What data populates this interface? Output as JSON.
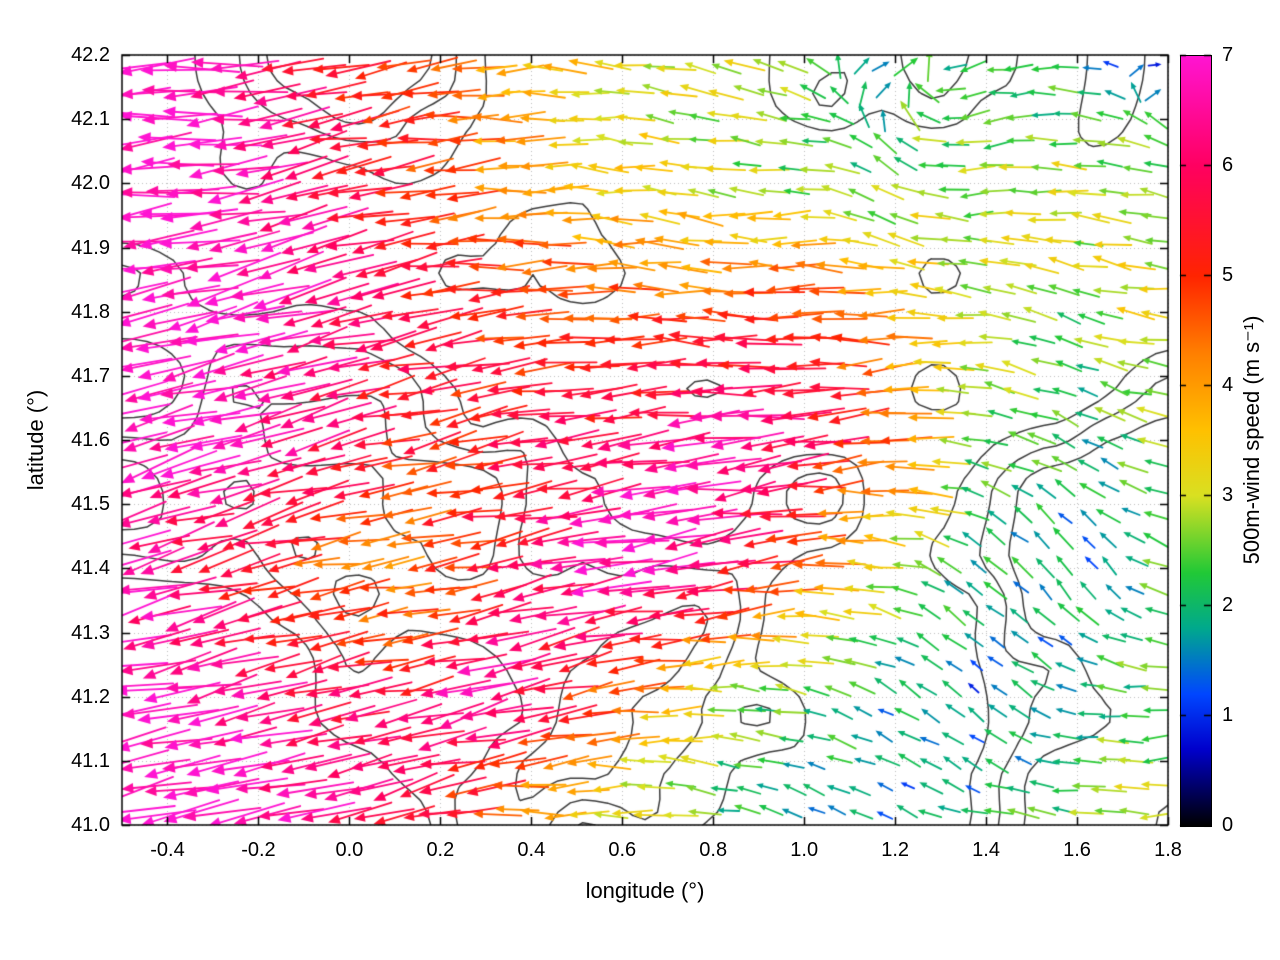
{
  "figure": {
    "background": "#ffffff",
    "plot_border_color": "#000000",
    "contour_color": "#3c3c3c",
    "grid_style": "dotted",
    "grid_color": "#bcbcbc"
  },
  "chart_data": {
    "type": "vector_field",
    "title": "",
    "xlabel": "longitude (°)",
    "ylabel": "latitude (°)",
    "xlim": [
      -0.5,
      1.8
    ],
    "ylim": [
      41.0,
      42.2
    ],
    "xticks": [
      -0.4,
      -0.2,
      0.0,
      0.2,
      0.4,
      0.6,
      0.8,
      1.0,
      1.2,
      1.4,
      1.6,
      1.8
    ],
    "yticks": [
      41.0,
      41.1,
      41.2,
      41.3,
      41.4,
      41.5,
      41.6,
      41.7,
      41.8,
      41.9,
      42.0,
      42.1,
      42.2
    ],
    "grid": "dotted",
    "overlay": "terrain contour lines (dark grey)",
    "colorbar": {
      "label": "500m-wind speed (m s⁻¹)",
      "min": 0,
      "max": 7,
      "ticks": [
        0,
        1,
        2,
        3,
        4,
        5,
        6,
        7
      ],
      "stops": [
        {
          "v": 0.0,
          "c": "#000000"
        },
        {
          "v": 0.7,
          "c": "#0000cc"
        },
        {
          "v": 1.2,
          "c": "#0046ff"
        },
        {
          "v": 1.8,
          "c": "#00a98c"
        },
        {
          "v": 2.3,
          "c": "#21c936"
        },
        {
          "v": 3.0,
          "c": "#d9e021"
        },
        {
          "v": 3.6,
          "c": "#ffc000"
        },
        {
          "v": 4.3,
          "c": "#ff7f00"
        },
        {
          "v": 5.0,
          "c": "#ff2400"
        },
        {
          "v": 6.0,
          "c": "#ff0060"
        },
        {
          "v": 7.0,
          "c": "#ff14d2"
        }
      ]
    },
    "wind_field": {
      "description": "Coarse grid of 500 m wind speed (m/s) and arrow direction (degrees CCW from east; 180 = arrow pointing west) estimated from the plotted vectors",
      "lon": [
        -0.5,
        -0.29,
        -0.08,
        0.13,
        0.34,
        0.55,
        0.76,
        0.97,
        1.18,
        1.39,
        1.6,
        1.8
      ],
      "lat": [
        42.2,
        42.0,
        41.8,
        41.6,
        41.4,
        41.2,
        41.0
      ],
      "speed": [
        [
          6.9,
          6.7,
          5.8,
          4.8,
          3.8,
          3.2,
          3.0,
          2.6,
          2.0,
          2.2,
          1.6,
          1.2
        ],
        [
          7.0,
          6.8,
          6.2,
          5.2,
          4.2,
          3.6,
          3.0,
          2.6,
          2.4,
          2.8,
          3.2,
          2.6
        ],
        [
          7.0,
          6.9,
          6.6,
          5.8,
          5.0,
          4.6,
          4.8,
          5.0,
          4.2,
          3.0,
          2.6,
          3.4
        ],
        [
          7.0,
          6.8,
          6.2,
          5.2,
          5.4,
          5.8,
          6.6,
          6.2,
          4.8,
          2.6,
          2.0,
          2.6
        ],
        [
          6.6,
          5.8,
          4.6,
          4.2,
          5.2,
          6.9,
          6.8,
          4.8,
          3.0,
          2.0,
          1.6,
          2.2
        ],
        [
          7.0,
          6.8,
          6.0,
          5.6,
          6.8,
          4.8,
          3.0,
          2.4,
          1.8,
          1.4,
          2.0,
          2.6
        ],
        [
          7.0,
          7.0,
          6.6,
          6.0,
          4.2,
          3.0,
          2.4,
          1.8,
          1.5,
          2.0,
          2.6,
          3.0
        ]
      ],
      "dir_deg": [
        [
          183,
          185,
          190,
          188,
          182,
          175,
          168,
          160,
          20,
          195,
          170,
          5
        ],
        [
          185,
          188,
          192,
          188,
          182,
          176,
          172,
          180,
          155,
          185,
          178,
          168
        ],
        [
          190,
          193,
          196,
          192,
          186,
          181,
          176,
          178,
          182,
          172,
          162,
          176
        ],
        [
          196,
          196,
          196,
          192,
          191,
          186,
          186,
          188,
          186,
          172,
          152,
          172
        ],
        [
          196,
          195,
          191,
          186,
          191,
          191,
          191,
          186,
          172,
          142,
          122,
          162
        ],
        [
          191,
          193,
          196,
          191,
          196,
          191,
          181,
          171,
          152,
          132,
          172,
          182
        ],
        [
          191,
          191,
          193,
          196,
          186,
          176,
          171,
          161,
          152,
          172,
          177,
          182
        ]
      ]
    }
  }
}
